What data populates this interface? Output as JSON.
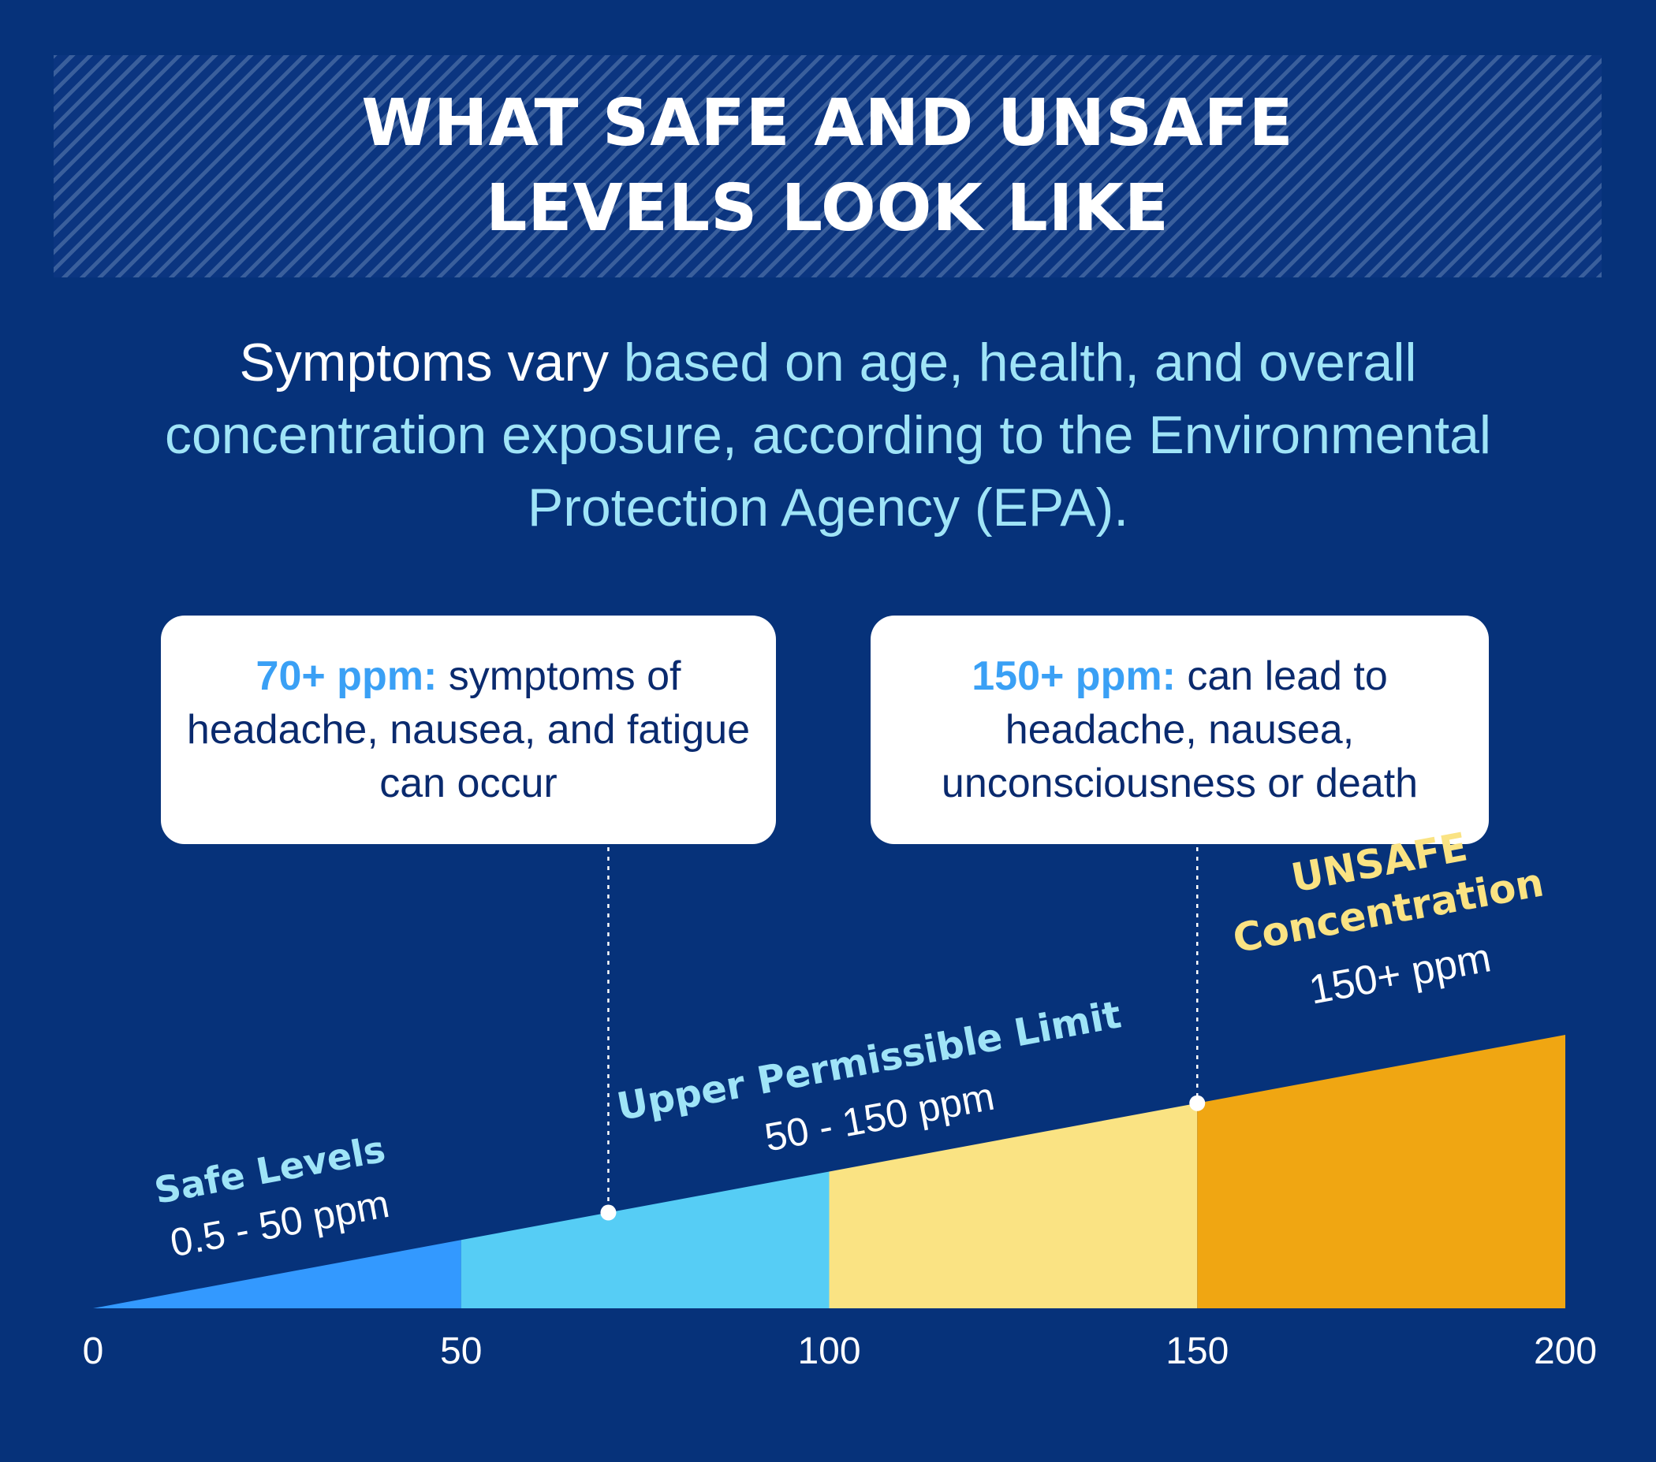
{
  "title": "WHAT SAFE AND UNSAFE\nLEVELS LOOK LIKE",
  "subtitle": {
    "lead": "Symptoms vary ",
    "rest": "based on age, health, and overall concentration exposure, according to the Environmental Protection Agency (EPA)."
  },
  "callouts": [
    {
      "highlight": "70+ ppm:",
      "text": " symptoms of headache, nausea, and fatigue can occur",
      "ppm": 70
    },
    {
      "highlight": "150+ ppm:",
      "text": " can lead to headache, nausea, unconsciousness or death",
      "ppm": 150
    }
  ],
  "chart_data": {
    "type": "area",
    "x_ticks": [
      0,
      50,
      100,
      150,
      200
    ],
    "xlim": [
      0,
      200
    ],
    "segments": [
      {
        "start": 0,
        "end": 50,
        "color": "#3399ff"
      },
      {
        "start": 50,
        "end": 100,
        "color": "#56cdf5"
      },
      {
        "start": 100,
        "end": 150,
        "color": "#fae383"
      },
      {
        "start": 150,
        "end": 200,
        "color": "#f0a612"
      }
    ],
    "zone_labels": [
      {
        "title": "Safe Levels",
        "range": "0.5 - 50 ppm",
        "title_color": "#9fe4f7"
      },
      {
        "title": "Upper Permissible Limit",
        "range": "50 - 150 ppm",
        "title_color": "#9fe4f7"
      },
      {
        "title": "UNSAFE Concentration",
        "range": "150+ ppm",
        "title_color": "#fae383"
      }
    ],
    "markers": [
      70,
      150
    ]
  }
}
